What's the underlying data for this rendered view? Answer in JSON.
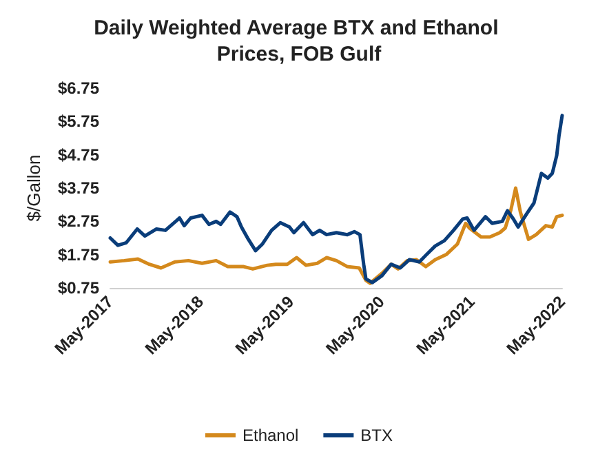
{
  "chart_data": {
    "type": "line",
    "title": "Daily Weighted Average BTX and Ethanol Prices, FOB Gulf",
    "ylabel": "$/Gallon",
    "xlim": [
      "2017-05-01",
      "2022-05-01"
    ],
    "xticks": [
      {
        "value": "2017-05-01",
        "label": "May-2017"
      },
      {
        "value": "2018-05-01",
        "label": "May-2018"
      },
      {
        "value": "2019-05-01",
        "label": "May-2019"
      },
      {
        "value": "2020-05-01",
        "label": "May-2020"
      },
      {
        "value": "2021-05-01",
        "label": "May-2021"
      },
      {
        "value": "2022-05-01",
        "label": "May-2022"
      }
    ],
    "ylim": [
      0.75,
      6.75
    ],
    "yticks": [
      {
        "value": 0.75,
        "label": "$0.75"
      },
      {
        "value": 1.75,
        "label": "$1.75"
      },
      {
        "value": 2.75,
        "label": "$2.75"
      },
      {
        "value": 3.75,
        "label": "$3.75"
      },
      {
        "value": 4.75,
        "label": "$4.75"
      },
      {
        "value": 5.75,
        "label": "$5.75"
      },
      {
        "value": 6.75,
        "label": "$6.75"
      }
    ],
    "grid": false,
    "legend": "bottom",
    "marker": "none",
    "line_style": "solid",
    "series": [
      {
        "name": "Ethanol",
        "color": "#d4891c",
        "x": [
          "2017-05-01",
          "2017-06-26",
          "2017-08-21",
          "2017-10-06",
          "2017-11-22",
          "2018-01-17",
          "2018-03-13",
          "2018-05-07",
          "2018-07-03",
          "2018-08-19",
          "2018-10-22",
          "2018-11-28",
          "2019-01-25",
          "2019-03-01",
          "2019-04-16",
          "2019-05-24",
          "2019-07-01",
          "2019-08-16",
          "2019-09-22",
          "2019-11-01",
          "2019-12-15",
          "2020-02-01",
          "2020-02-28",
          "2020-03-16",
          "2020-05-03",
          "2020-06-09",
          "2020-07-07",
          "2020-08-13",
          "2020-09-19",
          "2020-10-27",
          "2020-12-04",
          "2021-01-19",
          "2021-03-04",
          "2021-04-06",
          "2021-04-21",
          "2021-06-07",
          "2021-07-13",
          "2021-08-22",
          "2021-09-13",
          "2021-10-06",
          "2021-10-25",
          "2021-11-13",
          "2021-12-16",
          "2022-01-16",
          "2022-02-24",
          "2022-03-22",
          "2022-04-09",
          "2022-05-01"
        ],
        "values": [
          1.53,
          1.57,
          1.62,
          1.46,
          1.35,
          1.53,
          1.57,
          1.49,
          1.57,
          1.39,
          1.39,
          1.32,
          1.43,
          1.46,
          1.46,
          1.66,
          1.43,
          1.49,
          1.66,
          1.57,
          1.39,
          1.35,
          0.98,
          0.89,
          1.19,
          1.46,
          1.32,
          1.57,
          1.6,
          1.39,
          1.6,
          1.76,
          2.07,
          2.69,
          2.55,
          2.28,
          2.28,
          2.41,
          2.55,
          3.1,
          3.75,
          3.03,
          2.21,
          2.35,
          2.62,
          2.58,
          2.89,
          2.93
        ]
      },
      {
        "name": "BTX",
        "color": "#0a3d7a",
        "x": [
          "2017-05-01",
          "2017-06-01",
          "2017-07-05",
          "2017-08-18",
          "2017-09-18",
          "2017-11-04",
          "2017-12-10",
          "2018-02-05",
          "2018-02-24",
          "2018-03-22",
          "2018-05-07",
          "2018-06-04",
          "2018-07-03",
          "2018-07-21",
          "2018-08-28",
          "2018-09-25",
          "2018-10-13",
          "2018-11-10",
          "2018-12-09",
          "2019-01-06",
          "2019-02-12",
          "2019-03-19",
          "2019-04-25",
          "2019-05-13",
          "2019-06-21",
          "2019-07-28",
          "2019-08-25",
          "2019-09-22",
          "2019-11-01",
          "2019-12-15",
          "2020-01-13",
          "2020-02-04",
          "2020-02-19",
          "2020-02-28",
          "2020-03-25",
          "2020-05-03",
          "2020-06-09",
          "2020-07-16",
          "2020-08-22",
          "2020-10-01",
          "2020-10-27",
          "2020-12-04",
          "2021-01-10",
          "2021-02-16",
          "2021-03-25",
          "2021-04-12",
          "2021-05-10",
          "2021-06-25",
          "2021-07-22",
          "2021-09-01",
          "2021-09-22",
          "2021-10-16",
          "2021-11-04",
          "2021-12-10",
          "2022-01-07",
          "2022-02-06",
          "2022-03-04",
          "2022-03-22",
          "2022-04-09",
          "2022-04-18",
          "2022-05-01"
        ],
        "values": [
          2.25,
          2.03,
          2.11,
          2.52,
          2.31,
          2.52,
          2.48,
          2.85,
          2.62,
          2.85,
          2.93,
          2.66,
          2.75,
          2.66,
          3.03,
          2.89,
          2.58,
          2.21,
          1.87,
          2.07,
          2.48,
          2.71,
          2.58,
          2.41,
          2.71,
          2.35,
          2.48,
          2.35,
          2.41,
          2.35,
          2.44,
          2.35,
          1.46,
          1.02,
          0.91,
          1.12,
          1.46,
          1.35,
          1.6,
          1.53,
          1.73,
          2.01,
          2.17,
          2.48,
          2.82,
          2.85,
          2.48,
          2.89,
          2.69,
          2.75,
          3.07,
          2.82,
          2.58,
          2.99,
          3.3,
          4.19,
          4.05,
          4.19,
          4.73,
          5.31,
          5.93
        ]
      }
    ]
  }
}
